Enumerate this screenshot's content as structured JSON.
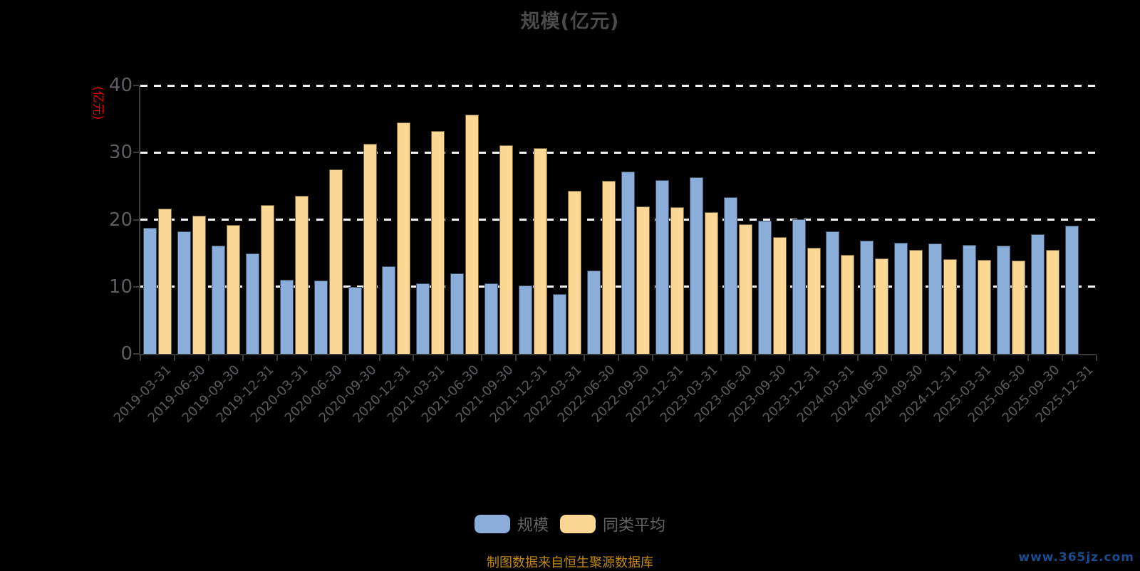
{
  "page": {
    "title": "规模(亿元)",
    "footer": "制图数据来自恒生聚源数据库",
    "watermark": "www.365jz.com"
  },
  "legend": {
    "items": [
      "规模",
      "同类平均"
    ]
  },
  "colors": {
    "background": "#000000",
    "series_scale": "#8badda",
    "series_peer_avg": "#fcd693",
    "bar_border": "rgba(0,0,0,0.55)",
    "title_text": "#4a4a4a",
    "axis_line": "#3a3a3a",
    "axis_label": "#5c5e62",
    "gridline": "#f2f2f2",
    "y_axis_name_red": "#e60000",
    "footer_gold": "#c08a12",
    "watermark_blue": "#1b4c8e"
  },
  "chart_data": {
    "type": "bar",
    "title": "规模(亿元)",
    "y_axis_name": "(亿元)",
    "xlabel": "",
    "ylabel": "(亿元)",
    "ylim": [
      0,
      40
    ],
    "y_ticks": [
      0,
      10,
      20,
      30,
      40
    ],
    "grid": "horizontal dashed white lines at 10/20/30/40, behind bars",
    "legend_position": "bottom-center",
    "categories": [
      "2019-03-31",
      "2019-06-30",
      "2019-09-30",
      "2019-12-31",
      "2020-03-31",
      "2020-06-30",
      "2020-09-30",
      "2020-12-31",
      "2021-03-31",
      "2021-06-30",
      "2021-09-30",
      "2021-12-31",
      "2022-03-31",
      "2022-06-30",
      "2022-09-30",
      "2022-12-31",
      "2023-03-31",
      "2023-06-30",
      "2023-09-30",
      "2023-12-31",
      "2024-03-31",
      "2024-06-30",
      "2024-09-30",
      "2024-12-31",
      "2025-03-31",
      "2025-06-30",
      "2025-09-30",
      "2025-12-31"
    ],
    "series": [
      {
        "name": "规模",
        "color": "#8badda",
        "values": [
          18.8,
          18.2,
          16.1,
          15.0,
          11.0,
          10.9,
          10.0,
          13.0,
          10.5,
          12.0,
          10.5,
          10.2,
          8.9,
          12.4,
          27.2,
          25.9,
          26.3,
          23.3,
          19.8,
          20.1,
          18.3,
          16.9,
          16.6,
          16.4,
          16.2,
          16.1,
          17.8,
          19.1
        ]
      },
      {
        "name": "同类平均",
        "color": "#fcd693",
        "values": [
          21.6,
          20.6,
          19.2,
          22.2,
          23.6,
          27.5,
          31.3,
          34.5,
          33.2,
          35.7,
          31.1,
          30.7,
          24.3,
          25.8,
          22.0,
          21.9,
          21.1,
          19.3,
          17.4,
          15.8,
          14.7,
          14.2,
          15.5,
          14.1,
          14.0,
          13.9,
          15.5,
          null
        ]
      }
    ]
  }
}
